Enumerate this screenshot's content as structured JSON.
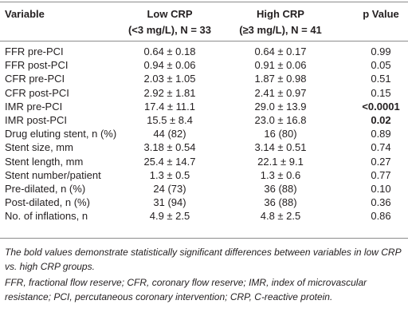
{
  "table": {
    "header": {
      "variable": "Variable",
      "low": [
        "Low CRP",
        "(<3 mg/L), N = 33"
      ],
      "high": [
        "High CRP",
        "(≥3 mg/L), N = 41"
      ],
      "p": "p Value"
    },
    "rows": [
      {
        "variable": "FFR pre-PCI",
        "low": "0.64 ± 0.18",
        "high": "0.64 ± 0.17",
        "p": "0.99"
      },
      {
        "variable": "FFR post-PCI",
        "low": "0.94 ± 0.06",
        "high": "0.91 ± 0.06",
        "p": "0.05"
      },
      {
        "variable": "CFR pre-PCI",
        "low": "2.03 ± 1.05",
        "high": "1.87 ± 0.98",
        "p": "0.51"
      },
      {
        "variable": "CFR post-PCI",
        "low": "2.92 ± 1.81",
        "high": "2.41 ± 0.97",
        "p": "0.15"
      },
      {
        "variable": "IMR pre-PCI",
        "low": "17.4 ± 11.1",
        "high": "29.0 ± 13.9",
        "p": "<0.0001",
        "bold": true
      },
      {
        "variable": "IMR post-PCI",
        "low": "15.5 ± 8.4",
        "high": "23.0 ± 16.8",
        "p": "0.02",
        "bold": true
      },
      {
        "variable": "Drug eluting stent, n (%)",
        "low": "44 (82)",
        "high": "16 (80)",
        "p": "0.89"
      },
      {
        "variable": "Stent size, mm",
        "low": "3.18 ± 0.54",
        "high": "3.14 ± 0.51",
        "p": "0.74"
      },
      {
        "variable": "Stent length, mm",
        "low": "25.4 ± 14.7",
        "high": "22.1 ± 9.1",
        "p": "0.27"
      },
      {
        "variable": "Stent number/patient",
        "low": "1.3 ± 0.5",
        "high": "1.3 ± 0.6",
        "p": "0.77"
      },
      {
        "variable": "Pre-dilated, n (%)",
        "low": "24 (73)",
        "high": "36 (88)",
        "p": "0.10"
      },
      {
        "variable": "Post-dilated, n (%)",
        "low": "31 (94)",
        "high": "36 (88)",
        "p": "0.36"
      },
      {
        "variable": "No. of inflations, n",
        "low": "4.9 ± 2.5",
        "high": "4.8 ± 2.5",
        "p": "0.86"
      }
    ],
    "notes": [
      "The bold values demonstrate statistically significant differences between variables in low CRP vs. high CRP groups.",
      "FFR, fractional flow reserve; CFR, coronary flow reserve; IMR, index of microvascular resistance; PCI, percutaneous coronary intervention; CRP, C-reactive protein."
    ]
  }
}
